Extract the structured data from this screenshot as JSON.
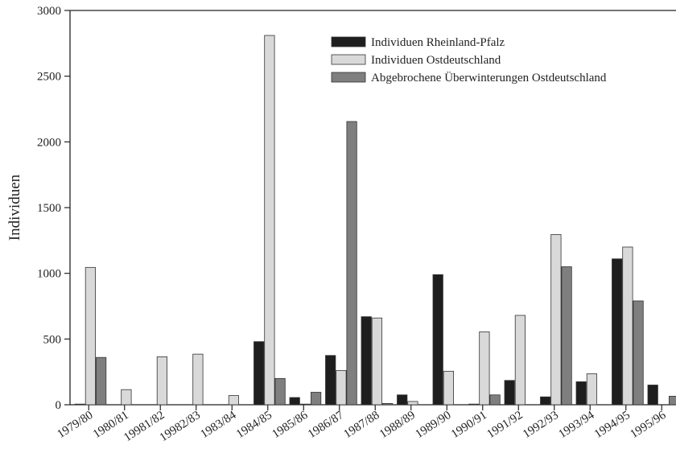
{
  "chart_data": {
    "type": "bar",
    "ylabel": "Individuen",
    "xlabel": "",
    "ylim": [
      0,
      3000
    ],
    "yticks": [
      0,
      500,
      1000,
      1500,
      2000,
      2500,
      3000
    ],
    "legend_position": "top-right",
    "grid": false,
    "categories": [
      "1979/80",
      "1980/81",
      "19981/82",
      "19982/83",
      "1983/84",
      "1984/85",
      "1985/86",
      "1986/87",
      "1987/88",
      "1988/89",
      "1989/90",
      "1990/91",
      "1991/92",
      "1992/93",
      "1993/94",
      "1994/95",
      "1995/96"
    ],
    "series": [
      {
        "name": "Individuen Rheinland-Pfalz",
        "color": "#1e1e1e",
        "values": [
          5,
          0,
          0,
          0,
          0,
          480,
          55,
          375,
          670,
          75,
          990,
          5,
          185,
          60,
          175,
          1110,
          150
        ]
      },
      {
        "name": "Individuen Ostdeutschland",
        "color": "#d9d9d9",
        "values": [
          1045,
          115,
          365,
          385,
          70,
          2810,
          5,
          260,
          660,
          25,
          255,
          555,
          680,
          1295,
          235,
          1200,
          0
        ]
      },
      {
        "name": "Abgebrochene Überwinterungen Ostdeutschland",
        "color": "#7f7f7f",
        "values": [
          360,
          0,
          0,
          0,
          0,
          200,
          95,
          2155,
          10,
          0,
          0,
          75,
          0,
          1050,
          0,
          790,
          65
        ]
      }
    ]
  }
}
